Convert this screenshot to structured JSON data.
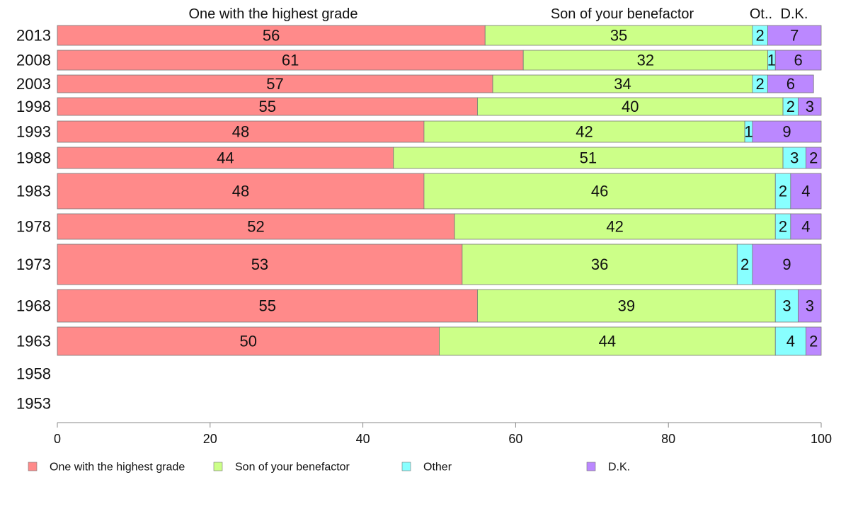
{
  "chart_data": {
    "type": "bar",
    "orientation": "horizontal",
    "stacked": true,
    "categories": [
      "2013",
      "2008",
      "2003",
      "1998",
      "1993",
      "1988",
      "1983",
      "1978",
      "1973",
      "1968",
      "1963",
      "1958",
      "1953"
    ],
    "series": [
      {
        "name": "One with the highest grade",
        "color": "#ff8a8a",
        "values": [
          56,
          61,
          57,
          55,
          48,
          44,
          48,
          52,
          53,
          55,
          50,
          null,
          null
        ]
      },
      {
        "name": "Son of your benefactor",
        "color": "#ccff88",
        "values": [
          35,
          32,
          34,
          40,
          42,
          51,
          46,
          42,
          36,
          39,
          44,
          null,
          null
        ]
      },
      {
        "name": "Other",
        "color": "#88ffff",
        "values": [
          2,
          1,
          2,
          2,
          1,
          3,
          2,
          2,
          2,
          3,
          4,
          null,
          null
        ]
      },
      {
        "name": "D.K.",
        "color": "#bb88ff",
        "values": [
          7,
          6,
          6,
          3,
          9,
          2,
          4,
          4,
          9,
          3,
          2,
          null,
          null
        ]
      }
    ],
    "top_headers": [
      "One with the highest grade",
      "Son of your benefactor",
      "Ot..",
      "D.K."
    ],
    "xlim": [
      0,
      100
    ],
    "xticks": [
      0,
      20,
      40,
      60,
      80,
      100
    ],
    "legend_position": "bottom",
    "grid": false
  }
}
